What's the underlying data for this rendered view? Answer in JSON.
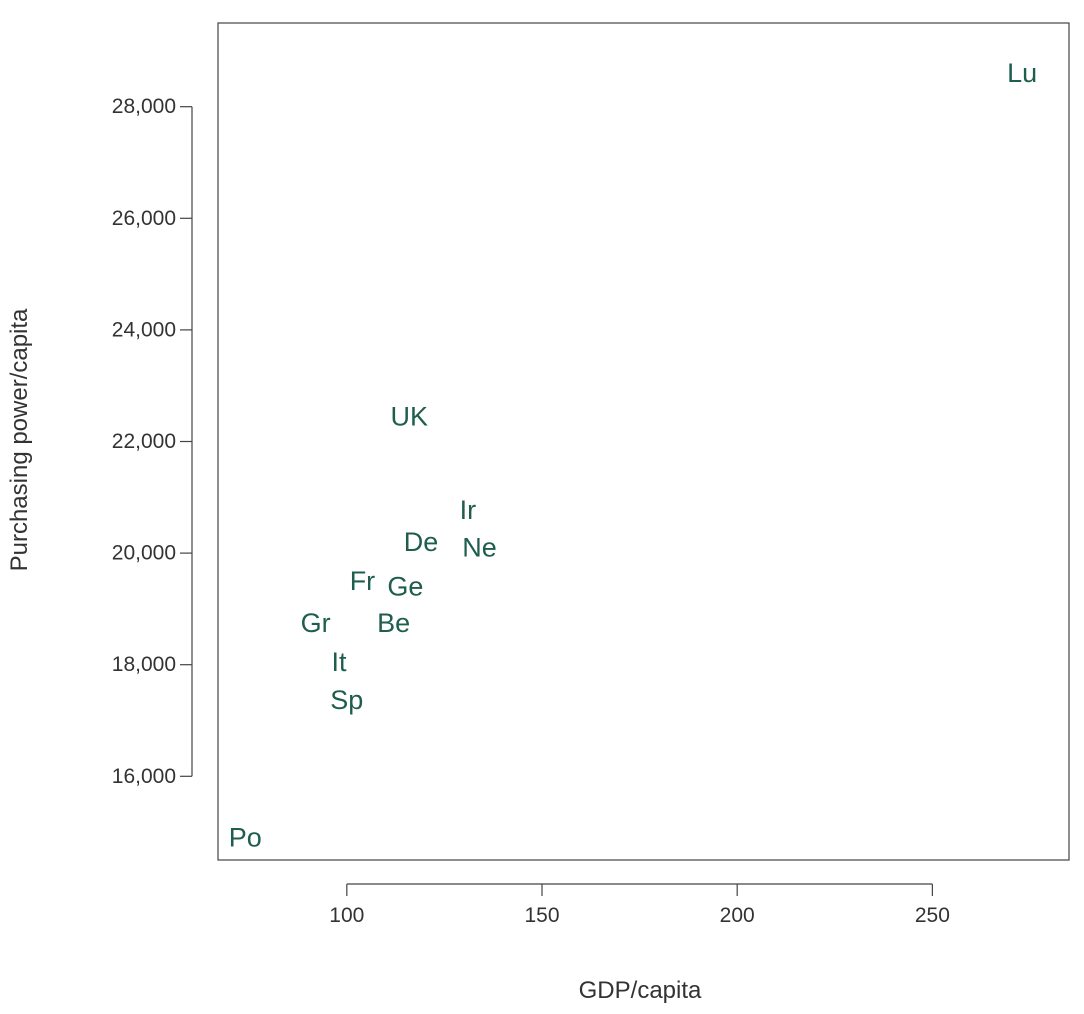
{
  "chart_data": {
    "type": "scatter",
    "xlabel": "GDP/capita",
    "ylabel": "Purchasing power/capita",
    "xlim": [
      67,
      285
    ],
    "ylim": [
      14500,
      29500
    ],
    "x_ticks": [
      100,
      150,
      200,
      250
    ],
    "x_tick_labels": [
      "100",
      "150",
      "200",
      "250"
    ],
    "y_ticks": [
      16000,
      18000,
      20000,
      22000,
      24000,
      26000,
      28000
    ],
    "y_tick_labels": [
      "16,000",
      "18,000",
      "20,000",
      "22,000",
      "24,000",
      "26,000",
      "28,000"
    ],
    "grid": false,
    "label_color": "#1f5e4e",
    "points": [
      {
        "label": "Lu",
        "x": 273,
        "y": 28600
      },
      {
        "label": "UK",
        "x": 116,
        "y": 22450
      },
      {
        "label": "Ir",
        "x": 131,
        "y": 20770
      },
      {
        "label": "De",
        "x": 119,
        "y": 20200
      },
      {
        "label": "Ne",
        "x": 134,
        "y": 20100
      },
      {
        "label": "Fr",
        "x": 104,
        "y": 19500
      },
      {
        "label": "Ge",
        "x": 115,
        "y": 19400
      },
      {
        "label": "Gr",
        "x": 92,
        "y": 18750
      },
      {
        "label": "Be",
        "x": 112,
        "y": 18750
      },
      {
        "label": "It",
        "x": 98,
        "y": 18050
      },
      {
        "label": "Sp",
        "x": 100,
        "y": 17370
      },
      {
        "label": "Po",
        "x": 74,
        "y": 14900
      }
    ]
  }
}
